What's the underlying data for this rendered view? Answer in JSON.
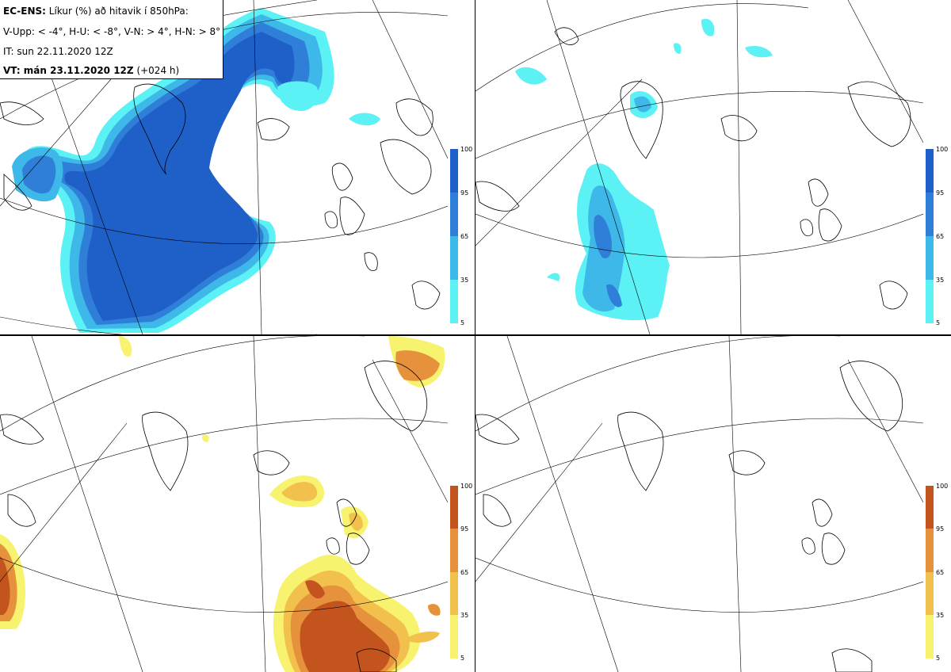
{
  "info": {
    "model_label": "EC-ENS:",
    "title": "Líkur (%) að hitavik í 850hPa:",
    "legend_line": "V-Upp: < -4°, H-U: < -8°, V-N: > 4°, H-N: > 8°",
    "it_line": "IT: sun 22.11.2020 12Z",
    "vt_label": "VT: mán 23.11.2020 12Z",
    "vt_offset": "(+024 h)"
  },
  "colorbar_cold": {
    "colors": [
      "#5cf1f5",
      "#3db8e8",
      "#2f7fd8",
      "#1f5fc8"
    ],
    "ticks": [
      "100",
      "95",
      "65",
      "35",
      "5"
    ]
  },
  "colorbar_warm": {
    "colors": [
      "#f7f36e",
      "#f2c04c",
      "#e6923c",
      "#c4541e"
    ],
    "ticks": [
      "100",
      "95",
      "65",
      "35",
      "5"
    ]
  },
  "panels": [
    {
      "id": "V-Upp",
      "field": "cold"
    },
    {
      "id": "H-U",
      "field": "cold"
    },
    {
      "id": "V-N",
      "field": "warm"
    },
    {
      "id": "H-N",
      "field": "warm"
    }
  ]
}
